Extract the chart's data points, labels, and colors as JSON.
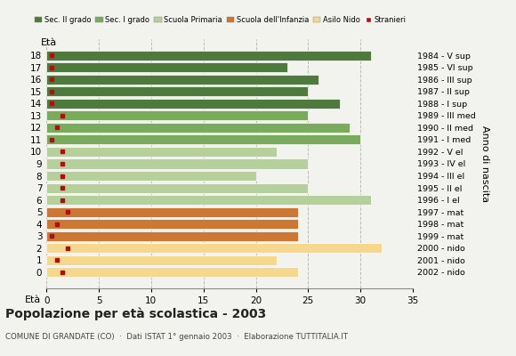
{
  "ages": [
    18,
    17,
    16,
    15,
    14,
    13,
    12,
    11,
    10,
    9,
    8,
    7,
    6,
    5,
    4,
    3,
    2,
    1,
    0
  ],
  "years": [
    "1984 - V sup",
    "1985 - VI sup",
    "1986 - III sup",
    "1987 - II sup",
    "1988 - I sup",
    "1989 - III med",
    "1990 - II med",
    "1991 - I med",
    "1992 - V el",
    "1993 - IV el",
    "1994 - III el",
    "1995 - II el",
    "1996 - I el",
    "1997 - mat",
    "1998 - mat",
    "1999 - mat",
    "2000 - nido",
    "2001 - nido",
    "2002 - nido"
  ],
  "bar_values": [
    31,
    23,
    26,
    25,
    28,
    25,
    29,
    30,
    22,
    25,
    20,
    25,
    31,
    24,
    24,
    24,
    32,
    22,
    24
  ],
  "bar_colors": [
    "#4e7a3e",
    "#4e7a3e",
    "#4e7a3e",
    "#4e7a3e",
    "#4e7a3e",
    "#7aab5c",
    "#7aab5c",
    "#7aab5c",
    "#b5d09a",
    "#b5d09a",
    "#b5d09a",
    "#b5d09a",
    "#b5d09a",
    "#cc7733",
    "#cc7733",
    "#cc7733",
    "#f5d78e",
    "#f5d78e",
    "#f5d78e"
  ],
  "stranieri_values": [
    0.5,
    0.5,
    0.5,
    0.5,
    0.5,
    1.5,
    1.0,
    0.5,
    1.5,
    1.5,
    1.5,
    1.5,
    1.5,
    2.0,
    1.0,
    0.5,
    2.0,
    1.0,
    1.5
  ],
  "stranieri_color": "#aa1111",
  "legend_labels": [
    "Sec. II grado",
    "Sec. I grado",
    "Scuola Primaria",
    "Scuola dell'Infanzia",
    "Asilo Nido",
    "Stranieri"
  ],
  "legend_colors": [
    "#4e7a3e",
    "#7aab5c",
    "#b5d09a",
    "#cc7733",
    "#f5d78e",
    "#aa1111"
  ],
  "title": "Popolazione per età scolastica - 2003",
  "subtitle": "COMUNE DI GRANDATE (CO)  ·  Dati ISTAT 1° gennaio 2003  ·  Elaborazione TUTTITALIA.IT",
  "ylabel_left": "Età",
  "ylabel_right": "Anno di nascita",
  "xlim": [
    0,
    35
  ],
  "xticks": [
    0,
    5,
    10,
    15,
    20,
    25,
    30,
    35
  ],
  "background_color": "#f2f2ee",
  "grid_color": "#bbbbbb"
}
